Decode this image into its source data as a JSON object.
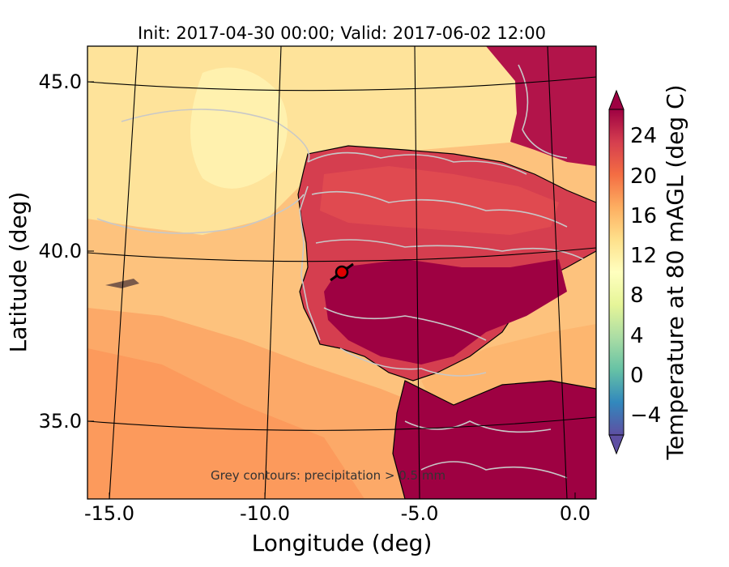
{
  "title": "Init: 2017-04-30 00:00; Valid: 2017-06-02 12:00",
  "xlabel": "Longitude (deg)",
  "ylabel": "Latitude (deg)",
  "xticks": [
    "-15.0",
    "-10.0",
    "-5.0",
    "0.0"
  ],
  "yticks": [
    "45.0",
    "40.0",
    "35.0"
  ],
  "annotation": "Grey contours: precipitation > 0.5 mm",
  "colorbar": {
    "label": "Temperature at 80 mAGL (deg C)",
    "ticks": [
      "24",
      "20",
      "16",
      "12",
      "8",
      "4",
      "0",
      "−4"
    ],
    "colormap": "Spectral_r",
    "extend": "both"
  },
  "marker": {
    "name": "station-marker",
    "color": "#e00000",
    "lon": -7.6,
    "lat": 39.3
  },
  "colors": {
    "sea_warm": "#fdd08a",
    "sea_cool": "#fee89a",
    "sea_orange": "#fdb56e",
    "land_hot": "#9e0142",
    "land_red": "#d53e4f",
    "land_orange": "#f46d43",
    "precip_contour": "#c8c8c8"
  }
}
